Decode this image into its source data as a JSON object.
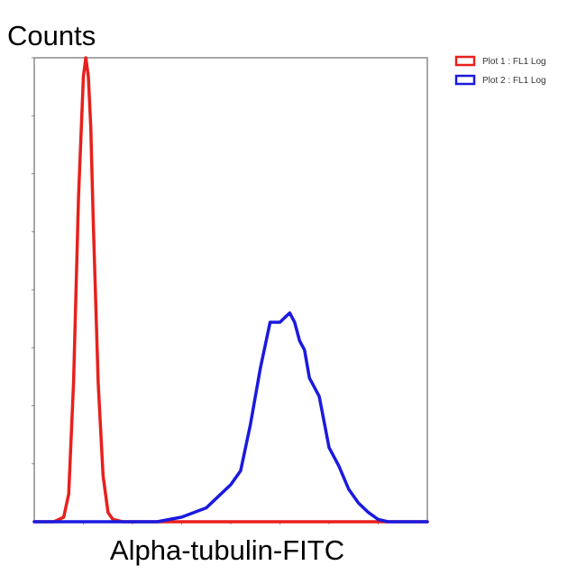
{
  "chart_data": {
    "type": "line",
    "title": "",
    "xlabel": "Alpha-tubulin-FITC",
    "ylabel": "Counts",
    "xscale": "log",
    "xlim": [
      0,
      800
    ],
    "ylim": [
      0,
      1000
    ],
    "grid": false,
    "legend_position": "top-right",
    "series": [
      {
        "name": "Plot 1 : FL1 Log",
        "color": "#e8201c",
        "x": [
          0,
          40,
          60,
          70,
          80,
          90,
          100,
          105,
          110,
          115,
          120,
          130,
          140,
          150,
          160,
          180,
          200,
          300,
          400,
          500,
          600,
          700,
          800
        ],
        "y": [
          0,
          0,
          10,
          60,
          300,
          700,
          960,
          1000,
          960,
          850,
          650,
          300,
          100,
          20,
          5,
          0,
          0,
          0,
          0,
          0,
          0,
          0,
          0
        ]
      },
      {
        "name": "Plot 2 : FL1 Log",
        "color": "#1a1adf",
        "x": [
          0,
          150,
          200,
          250,
          300,
          350,
          380,
          400,
          420,
          440,
          460,
          480,
          500,
          510,
          520,
          530,
          540,
          550,
          560,
          580,
          600,
          620,
          640,
          660,
          680,
          700,
          720,
          750,
          800
        ],
        "y": [
          0,
          0,
          0,
          0,
          10,
          30,
          60,
          80,
          110,
          210,
          330,
          430,
          430,
          440,
          450,
          430,
          390,
          370,
          310,
          270,
          160,
          120,
          70,
          40,
          20,
          5,
          0,
          0,
          0
        ]
      }
    ]
  }
}
